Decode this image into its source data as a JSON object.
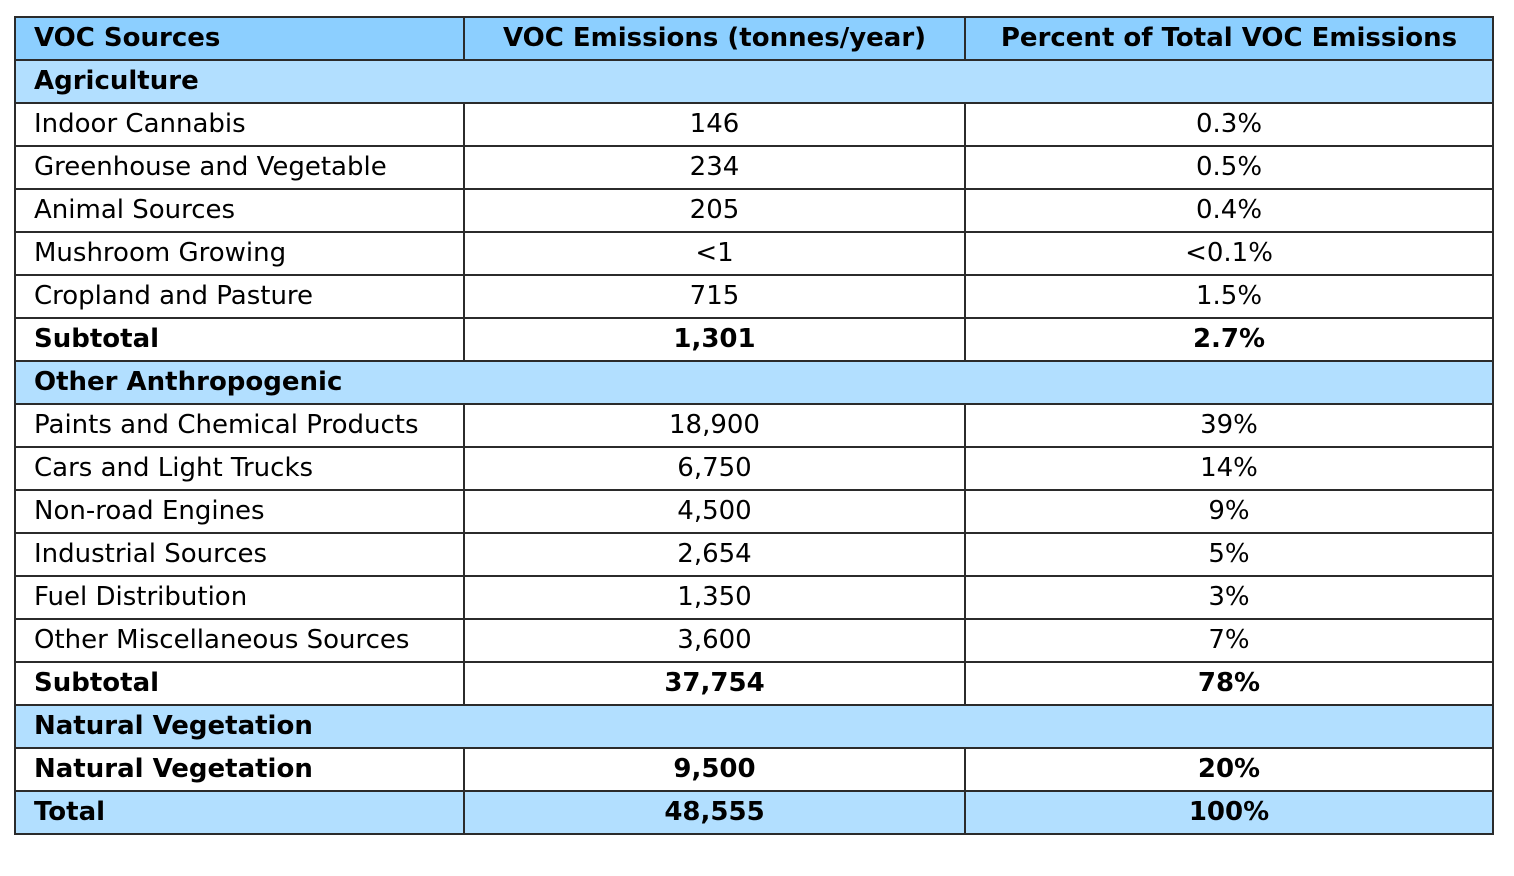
{
  "chart_data": {
    "type": "table",
    "columns": [
      "VOC Sources",
      "VOC Emissions (tonnes/year)",
      "Percent of Total VOC Emissions"
    ],
    "sections": [
      {
        "name": "Agriculture",
        "rows": [
          {
            "source": "Indoor Cannabis",
            "emissions": "146",
            "percent": "0.3%"
          },
          {
            "source": "Greenhouse and Vegetable",
            "emissions": "234",
            "percent": "0.5%"
          },
          {
            "source": "Animal Sources",
            "emissions": "205",
            "percent": "0.4%"
          },
          {
            "source": "Mushroom Growing",
            "emissions": "<1",
            "percent": "<0.1%"
          },
          {
            "source": "Cropland and Pasture",
            "emissions": "715",
            "percent": "1.5%"
          }
        ],
        "subtotal": {
          "label": "Subtotal",
          "emissions": "1,301",
          "percent": "2.7%"
        }
      },
      {
        "name": "Other Anthropogenic",
        "rows": [
          {
            "source": "Paints and Chemical Products",
            "emissions": "18,900",
            "percent": "39%"
          },
          {
            "source": "Cars and Light Trucks",
            "emissions": "6,750",
            "percent": "14%"
          },
          {
            "source": "Non-road Engines",
            "emissions": "4,500",
            "percent": "9%"
          },
          {
            "source": "Industrial Sources",
            "emissions": "2,654",
            "percent": "5%"
          },
          {
            "source": "Fuel Distribution",
            "emissions": "1,350",
            "percent": "3%"
          },
          {
            "source": "Other Miscellaneous Sources",
            "emissions": "3,600",
            "percent": "7%"
          }
        ],
        "subtotal": {
          "label": "Subtotal",
          "emissions": "37,754",
          "percent": "78%"
        }
      },
      {
        "name": "Natural Vegetation",
        "rows": [],
        "subtotal": {
          "label": "Natural Vegetation",
          "emissions": "9,500",
          "percent": "20%"
        }
      }
    ],
    "total": {
      "label": "Total",
      "emissions": "48,555",
      "percent": "100%"
    },
    "colors": {
      "header_bg": "#8ccfff",
      "section_bg": "#b2dfff",
      "border": "#2b2b2b"
    }
  }
}
